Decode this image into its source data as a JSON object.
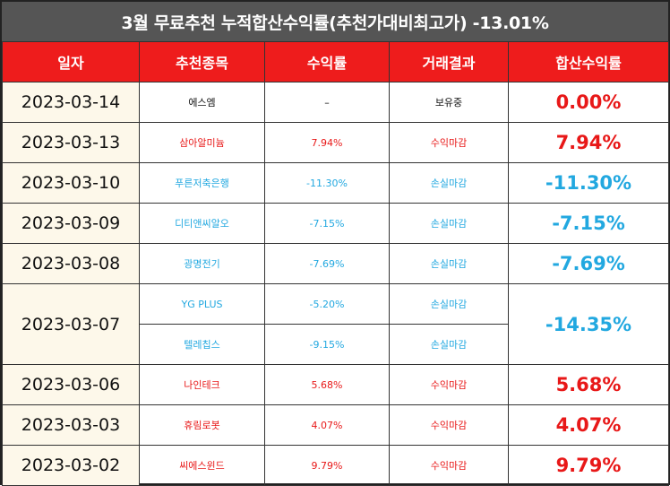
{
  "title": "3월 무료추천 누적합산수익률(추천가대비최고가) -13.01%",
  "headers": [
    "일자",
    "추천종목",
    "수익률",
    "거래결과",
    "합산수익률"
  ],
  "colors": {
    "header_bg": "#ee1c1c",
    "title_bg": "#555555",
    "profit": "#e81818",
    "loss": "#22a8e0",
    "date_bg": "#fdf8ea"
  },
  "rows": [
    {
      "date": "2023-03-14",
      "name": "에스엠",
      "rate": "–",
      "result": "보유중",
      "cumulative": "0.00%",
      "tone": "black",
      "cum_tone": "red"
    },
    {
      "date": "2023-03-13",
      "name": "삼아알미늄",
      "rate": "7.94%",
      "result": "수익마감",
      "cumulative": "7.94%",
      "tone": "red",
      "cum_tone": "red"
    },
    {
      "date": "2023-03-10",
      "name": "푸른저축은행",
      "rate": "-11.30%",
      "result": "손실마감",
      "cumulative": "-11.30%",
      "tone": "blue",
      "cum_tone": "blue"
    },
    {
      "date": "2023-03-09",
      "name": "디티앤씨알오",
      "rate": "-7.15%",
      "result": "손실마감",
      "cumulative": "-7.15%",
      "tone": "blue",
      "cum_tone": "blue"
    },
    {
      "date": "2023-03-08",
      "name": "광명전기",
      "rate": "-7.69%",
      "result": "손실마감",
      "cumulative": "-7.69%",
      "tone": "blue",
      "cum_tone": "blue"
    },
    {
      "date": "2023-03-07",
      "name": "YG PLUS",
      "rate": "-5.20%",
      "result": "손실마감",
      "cumulative": "-14.35%",
      "tone": "blue",
      "cum_tone": "blue"
    },
    {
      "name": "텔레칩스",
      "rate": "-9.15%",
      "result": "손실마감",
      "tone": "blue"
    },
    {
      "date": "2023-03-06",
      "name": "나인테크",
      "rate": "5.68%",
      "result": "수익마감",
      "cumulative": "5.68%",
      "tone": "red",
      "cum_tone": "red"
    },
    {
      "date": "2023-03-03",
      "name": "휴림로봇",
      "rate": "4.07%",
      "result": "수익마감",
      "cumulative": "4.07%",
      "tone": "red",
      "cum_tone": "red"
    },
    {
      "date": "2023-03-02",
      "name": "씨에스윈드",
      "rate": "9.79%",
      "result": "수익마감",
      "cumulative": "9.79%",
      "tone": "red",
      "cum_tone": "red"
    }
  ]
}
